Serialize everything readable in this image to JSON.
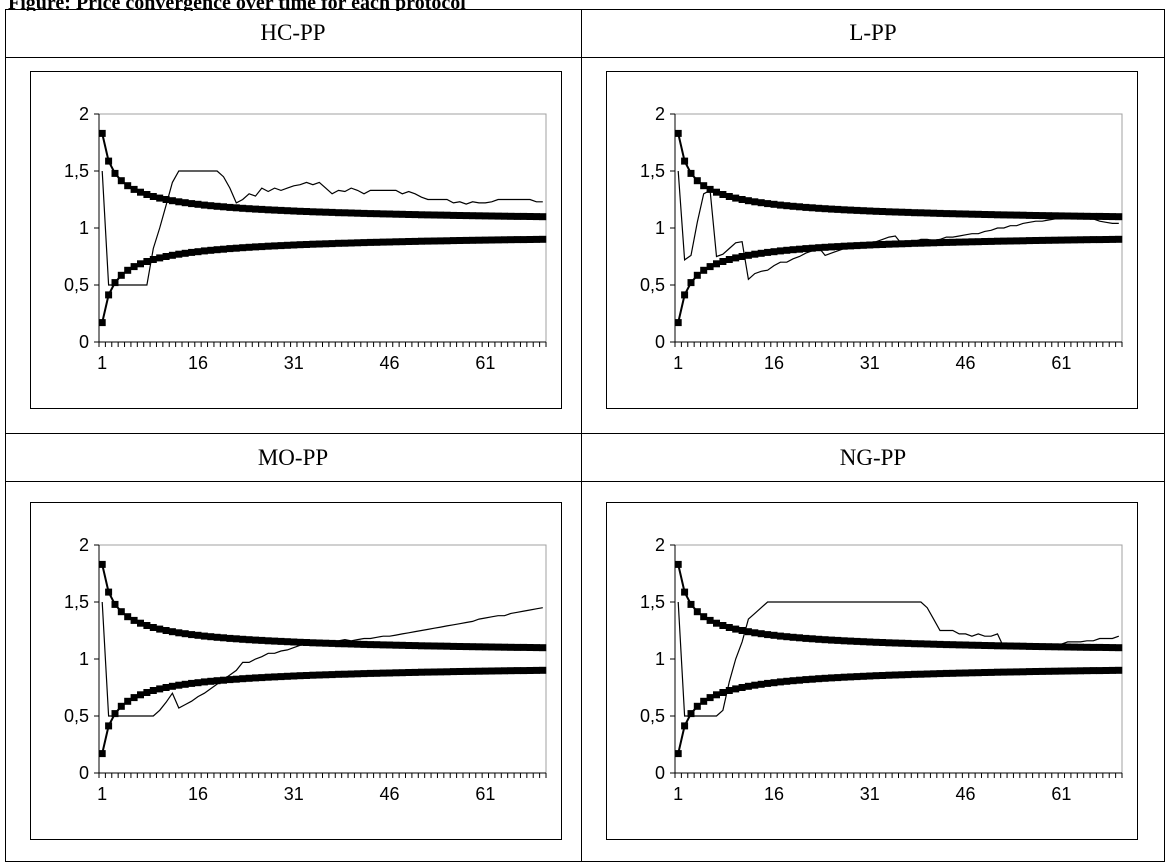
{
  "caption": "Figure: Price convergence over time for each protocol",
  "chart_data": [
    {
      "type": "line",
      "title": "HC-PP",
      "x": [
        1,
        70
      ],
      "xticks": [
        "1",
        "16",
        "31",
        "46",
        "61"
      ],
      "yticks": [
        "0",
        "0,5",
        "1",
        "1,5",
        "2"
      ],
      "ylim": [
        0,
        2
      ],
      "bounds": {
        "upper_start": 1.83,
        "lower_start": 0.18,
        "n": 70,
        "style": "line with square markers"
      },
      "series_points": [
        [
          1,
          1.5
        ],
        [
          2,
          0.5
        ],
        [
          3,
          0.5
        ],
        [
          4,
          0.5
        ],
        [
          5,
          0.5
        ],
        [
          6,
          0.5
        ],
        [
          7,
          0.5
        ],
        [
          8,
          0.5
        ],
        [
          9,
          0.82
        ],
        [
          10,
          1.0
        ],
        [
          11,
          1.2
        ],
        [
          12,
          1.4
        ],
        [
          13,
          1.5
        ],
        [
          14,
          1.5
        ],
        [
          15,
          1.5
        ],
        [
          16,
          1.5
        ],
        [
          17,
          1.5
        ],
        [
          18,
          1.5
        ],
        [
          19,
          1.5
        ],
        [
          20,
          1.45
        ],
        [
          21,
          1.35
        ],
        [
          22,
          1.22
        ],
        [
          23,
          1.25
        ],
        [
          24,
          1.3
        ],
        [
          25,
          1.28
        ],
        [
          26,
          1.35
        ],
        [
          27,
          1.32
        ],
        [
          28,
          1.35
        ],
        [
          29,
          1.33
        ],
        [
          30,
          1.35
        ],
        [
          31,
          1.37
        ],
        [
          32,
          1.38
        ],
        [
          33,
          1.4
        ],
        [
          34,
          1.38
        ],
        [
          35,
          1.4
        ],
        [
          36,
          1.35
        ],
        [
          37,
          1.3
        ],
        [
          38,
          1.33
        ],
        [
          39,
          1.32
        ],
        [
          40,
          1.35
        ],
        [
          41,
          1.33
        ],
        [
          42,
          1.3
        ],
        [
          43,
          1.33
        ],
        [
          44,
          1.33
        ],
        [
          45,
          1.33
        ],
        [
          46,
          1.33
        ],
        [
          47,
          1.33
        ],
        [
          48,
          1.3
        ],
        [
          49,
          1.32
        ],
        [
          50,
          1.3
        ],
        [
          51,
          1.27
        ],
        [
          52,
          1.25
        ],
        [
          53,
          1.25
        ],
        [
          54,
          1.25
        ],
        [
          55,
          1.25
        ],
        [
          56,
          1.22
        ],
        [
          57,
          1.23
        ],
        [
          58,
          1.21
        ],
        [
          59,
          1.23
        ],
        [
          60,
          1.22
        ],
        [
          61,
          1.22
        ],
        [
          62,
          1.23
        ],
        [
          63,
          1.25
        ],
        [
          64,
          1.25
        ],
        [
          65,
          1.25
        ],
        [
          66,
          1.25
        ],
        [
          67,
          1.25
        ],
        [
          68,
          1.25
        ],
        [
          69,
          1.23
        ],
        [
          70,
          1.23
        ]
      ]
    },
    {
      "type": "line",
      "title": "L-PP",
      "x": [
        1,
        70
      ],
      "xticks": [
        "1",
        "16",
        "31",
        "46",
        "61"
      ],
      "yticks": [
        "0",
        "0,5",
        "1",
        "1,5",
        "2"
      ],
      "ylim": [
        0,
        2
      ],
      "bounds": {
        "upper_start": 1.83,
        "lower_start": 0.18,
        "n": 70,
        "style": "line with square markers"
      },
      "series_points": [
        [
          1,
          1.5
        ],
        [
          2,
          0.72
        ],
        [
          3,
          0.76
        ],
        [
          4,
          1.05
        ],
        [
          5,
          1.3
        ],
        [
          6,
          1.33
        ],
        [
          7,
          0.75
        ],
        [
          8,
          0.77
        ],
        [
          9,
          0.82
        ],
        [
          10,
          0.87
        ],
        [
          11,
          0.88
        ],
        [
          12,
          0.55
        ],
        [
          13,
          0.6
        ],
        [
          14,
          0.62
        ],
        [
          15,
          0.63
        ],
        [
          16,
          0.67
        ],
        [
          17,
          0.7
        ],
        [
          18,
          0.7
        ],
        [
          19,
          0.73
        ],
        [
          20,
          0.75
        ],
        [
          21,
          0.78
        ],
        [
          22,
          0.8
        ],
        [
          23,
          0.83
        ],
        [
          24,
          0.76
        ],
        [
          25,
          0.78
        ],
        [
          26,
          0.8
        ],
        [
          27,
          0.82
        ],
        [
          28,
          0.84
        ],
        [
          29,
          0.85
        ],
        [
          30,
          0.86
        ],
        [
          31,
          0.87
        ],
        [
          32,
          0.88
        ],
        [
          33,
          0.9
        ],
        [
          34,
          0.92
        ],
        [
          35,
          0.93
        ],
        [
          36,
          0.86
        ],
        [
          37,
          0.87
        ],
        [
          38,
          0.88
        ],
        [
          39,
          0.9
        ],
        [
          40,
          0.9
        ],
        [
          41,
          0.89
        ],
        [
          42,
          0.9
        ],
        [
          43,
          0.92
        ],
        [
          44,
          0.92
        ],
        [
          45,
          0.93
        ],
        [
          46,
          0.94
        ],
        [
          47,
          0.95
        ],
        [
          48,
          0.95
        ],
        [
          49,
          0.97
        ],
        [
          50,
          0.98
        ],
        [
          51,
          1.0
        ],
        [
          52,
          1.0
        ],
        [
          53,
          1.02
        ],
        [
          54,
          1.02
        ],
        [
          55,
          1.04
        ],
        [
          56,
          1.05
        ],
        [
          57,
          1.06
        ],
        [
          58,
          1.06
        ],
        [
          59,
          1.07
        ],
        [
          60,
          1.08
        ],
        [
          61,
          1.08
        ],
        [
          62,
          1.09
        ],
        [
          63,
          1.09
        ],
        [
          64,
          1.1
        ],
        [
          65,
          1.08
        ],
        [
          66,
          1.08
        ],
        [
          67,
          1.06
        ],
        [
          68,
          1.05
        ],
        [
          69,
          1.04
        ],
        [
          70,
          1.04
        ]
      ]
    },
    {
      "type": "line",
      "title": "MO-PP",
      "x": [
        1,
        70
      ],
      "xticks": [
        "1",
        "16",
        "31",
        "46",
        "61"
      ],
      "yticks": [
        "0",
        "0,5",
        "1",
        "1,5",
        "2"
      ],
      "ylim": [
        0,
        2
      ],
      "bounds": {
        "upper_start": 1.83,
        "lower_start": 0.18,
        "n": 70,
        "style": "line with square markers"
      },
      "series_points": [
        [
          1,
          1.5
        ],
        [
          2,
          0.5
        ],
        [
          3,
          0.5
        ],
        [
          4,
          0.5
        ],
        [
          5,
          0.5
        ],
        [
          6,
          0.5
        ],
        [
          7,
          0.5
        ],
        [
          8,
          0.5
        ],
        [
          9,
          0.5
        ],
        [
          10,
          0.55
        ],
        [
          11,
          0.62
        ],
        [
          12,
          0.7
        ],
        [
          13,
          0.57
        ],
        [
          14,
          0.6
        ],
        [
          15,
          0.63
        ],
        [
          16,
          0.67
        ],
        [
          17,
          0.7
        ],
        [
          18,
          0.74
        ],
        [
          19,
          0.78
        ],
        [
          20,
          0.82
        ],
        [
          21,
          0.86
        ],
        [
          22,
          0.9
        ],
        [
          23,
          0.97
        ],
        [
          24,
          0.97
        ],
        [
          25,
          1.0
        ],
        [
          26,
          1.02
        ],
        [
          27,
          1.05
        ],
        [
          28,
          1.05
        ],
        [
          29,
          1.07
        ],
        [
          30,
          1.08
        ],
        [
          31,
          1.1
        ],
        [
          32,
          1.12
        ],
        [
          33,
          1.13
        ],
        [
          34,
          1.14
        ],
        [
          35,
          1.15
        ],
        [
          36,
          1.16
        ],
        [
          37,
          1.16
        ],
        [
          38,
          1.16
        ],
        [
          39,
          1.17
        ],
        [
          40,
          1.16
        ],
        [
          41,
          1.17
        ],
        [
          42,
          1.18
        ],
        [
          43,
          1.18
        ],
        [
          44,
          1.19
        ],
        [
          45,
          1.2
        ],
        [
          46,
          1.2
        ],
        [
          47,
          1.21
        ],
        [
          48,
          1.22
        ],
        [
          49,
          1.23
        ],
        [
          50,
          1.24
        ],
        [
          51,
          1.25
        ],
        [
          52,
          1.26
        ],
        [
          53,
          1.27
        ],
        [
          54,
          1.28
        ],
        [
          55,
          1.29
        ],
        [
          56,
          1.3
        ],
        [
          57,
          1.31
        ],
        [
          58,
          1.32
        ],
        [
          59,
          1.33
        ],
        [
          60,
          1.35
        ],
        [
          61,
          1.36
        ],
        [
          62,
          1.37
        ],
        [
          63,
          1.38
        ],
        [
          64,
          1.38
        ],
        [
          65,
          1.4
        ],
        [
          66,
          1.41
        ],
        [
          67,
          1.42
        ],
        [
          68,
          1.43
        ],
        [
          69,
          1.44
        ],
        [
          70,
          1.45
        ]
      ]
    },
    {
      "type": "line",
      "title": "NG-PP",
      "x": [
        1,
        70
      ],
      "xticks": [
        "1",
        "16",
        "31",
        "46",
        "61"
      ],
      "yticks": [
        "0",
        "0,5",
        "1",
        "1,5",
        "2"
      ],
      "ylim": [
        0,
        2
      ],
      "bounds": {
        "upper_start": 1.83,
        "lower_start": 0.18,
        "n": 70,
        "style": "line with square markers"
      },
      "series_points": [
        [
          1,
          1.5
        ],
        [
          2,
          0.5
        ],
        [
          3,
          0.5
        ],
        [
          4,
          0.5
        ],
        [
          5,
          0.5
        ],
        [
          6,
          0.5
        ],
        [
          7,
          0.5
        ],
        [
          8,
          0.55
        ],
        [
          9,
          0.8
        ],
        [
          10,
          1.0
        ],
        [
          11,
          1.15
        ],
        [
          12,
          1.35
        ],
        [
          13,
          1.4
        ],
        [
          14,
          1.45
        ],
        [
          15,
          1.5
        ],
        [
          16,
          1.5
        ],
        [
          17,
          1.5
        ],
        [
          18,
          1.5
        ],
        [
          19,
          1.5
        ],
        [
          20,
          1.5
        ],
        [
          21,
          1.5
        ],
        [
          22,
          1.5
        ],
        [
          23,
          1.5
        ],
        [
          24,
          1.5
        ],
        [
          25,
          1.5
        ],
        [
          26,
          1.5
        ],
        [
          27,
          1.5
        ],
        [
          28,
          1.5
        ],
        [
          29,
          1.5
        ],
        [
          30,
          1.5
        ],
        [
          31,
          1.5
        ],
        [
          32,
          1.5
        ],
        [
          33,
          1.5
        ],
        [
          34,
          1.5
        ],
        [
          35,
          1.5
        ],
        [
          36,
          1.5
        ],
        [
          37,
          1.5
        ],
        [
          38,
          1.5
        ],
        [
          39,
          1.5
        ],
        [
          40,
          1.45
        ],
        [
          41,
          1.35
        ],
        [
          42,
          1.25
        ],
        [
          43,
          1.25
        ],
        [
          44,
          1.25
        ],
        [
          45,
          1.22
        ],
        [
          46,
          1.22
        ],
        [
          47,
          1.2
        ],
        [
          48,
          1.22
        ],
        [
          49,
          1.2
        ],
        [
          50,
          1.2
        ],
        [
          51,
          1.22
        ],
        [
          52,
          1.1
        ],
        [
          53,
          1.12
        ],
        [
          54,
          1.12
        ],
        [
          55,
          1.12
        ],
        [
          56,
          1.12
        ],
        [
          57,
          1.12
        ],
        [
          58,
          1.12
        ],
        [
          59,
          1.12
        ],
        [
          60,
          1.13
        ],
        [
          61,
          1.13
        ],
        [
          62,
          1.15
        ],
        [
          63,
          1.15
        ],
        [
          64,
          1.15
        ],
        [
          65,
          1.16
        ],
        [
          66,
          1.16
        ],
        [
          67,
          1.18
        ],
        [
          68,
          1.18
        ],
        [
          69,
          1.18
        ],
        [
          70,
          1.2
        ]
      ]
    }
  ]
}
